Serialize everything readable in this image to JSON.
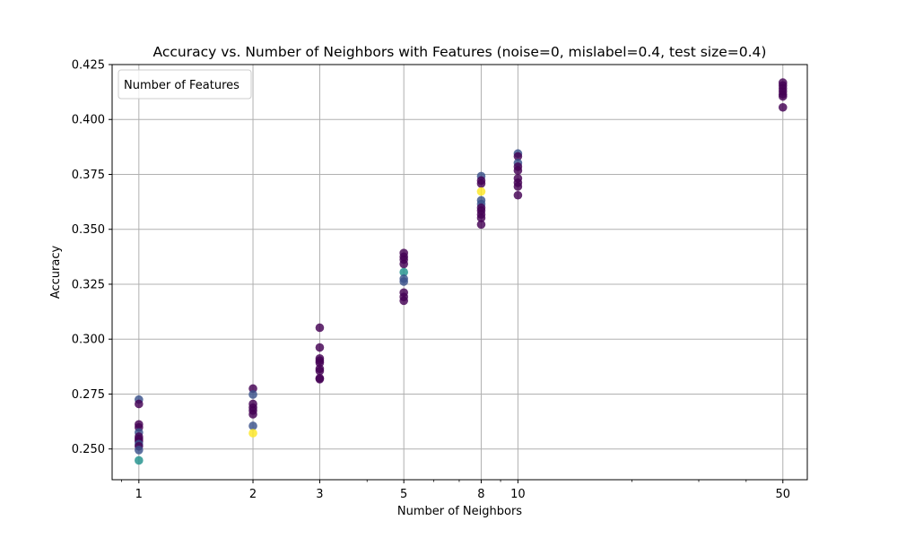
{
  "chart_data": {
    "type": "scatter",
    "title": "Accuracy vs. Number of Neighbors with Features (noise=0, mislabel=0.4, test size=0.4)",
    "xlabel": "Number of Neighbors",
    "ylabel": "Accuracy",
    "xscale": "log",
    "xlim": [
      0.85,
      58
    ],
    "ylim": [
      0.236,
      0.425
    ],
    "xticks": [
      1,
      2,
      3,
      5,
      8,
      10,
      50
    ],
    "xtick_labels": [
      "1",
      "2",
      "3",
      "5",
      "8",
      "10",
      "50"
    ],
    "yticks": [
      0.25,
      0.275,
      0.3,
      0.325,
      0.35,
      0.375,
      0.4,
      0.425
    ],
    "ytick_labels": [
      "0.250",
      "0.275",
      "0.300",
      "0.325",
      "0.350",
      "0.375",
      "0.400",
      "0.425"
    ],
    "grid": true,
    "legend": {
      "title": "Number of Features",
      "placement": "top-left",
      "entries": []
    },
    "colormap": "viridis",
    "colors": {
      "low": "#440154",
      "mid_low": "#3b528b",
      "mid": "#21918c",
      "high": "#fde725"
    },
    "points": [
      {
        "x": 1,
        "y": 0.2725,
        "c": "#3b528b"
      },
      {
        "x": 1,
        "y": 0.2705,
        "c": "#440154"
      },
      {
        "x": 1,
        "y": 0.2612,
        "c": "#440154"
      },
      {
        "x": 1,
        "y": 0.2598,
        "c": "#440154"
      },
      {
        "x": 1,
        "y": 0.2575,
        "c": "#3b528b"
      },
      {
        "x": 1,
        "y": 0.2556,
        "c": "#440154"
      },
      {
        "x": 1,
        "y": 0.2545,
        "c": "#440154"
      },
      {
        "x": 1,
        "y": 0.2535,
        "c": "#440154"
      },
      {
        "x": 1,
        "y": 0.2522,
        "c": "#3b528b"
      },
      {
        "x": 1,
        "y": 0.2512,
        "c": "#440154"
      },
      {
        "x": 1,
        "y": 0.2495,
        "c": "#3b528b"
      },
      {
        "x": 1,
        "y": 0.2448,
        "c": "#21918c"
      },
      {
        "x": 2,
        "y": 0.2775,
        "c": "#440154"
      },
      {
        "x": 2,
        "y": 0.2748,
        "c": "#3b528b"
      },
      {
        "x": 2,
        "y": 0.2705,
        "c": "#440154"
      },
      {
        "x": 2,
        "y": 0.2688,
        "c": "#440154"
      },
      {
        "x": 2,
        "y": 0.2675,
        "c": "#440154"
      },
      {
        "x": 2,
        "y": 0.2658,
        "c": "#440154"
      },
      {
        "x": 2,
        "y": 0.2605,
        "c": "#3b528b"
      },
      {
        "x": 2,
        "y": 0.2572,
        "c": "#fde725"
      },
      {
        "x": 3,
        "y": 0.3052,
        "c": "#440154"
      },
      {
        "x": 3,
        "y": 0.2962,
        "c": "#440154"
      },
      {
        "x": 3,
        "y": 0.2912,
        "c": "#440154"
      },
      {
        "x": 3,
        "y": 0.2902,
        "c": "#440154"
      },
      {
        "x": 3,
        "y": 0.2892,
        "c": "#440154"
      },
      {
        "x": 3,
        "y": 0.2865,
        "c": "#440154"
      },
      {
        "x": 3,
        "y": 0.2855,
        "c": "#440154"
      },
      {
        "x": 3,
        "y": 0.2822,
        "c": "#440154"
      },
      {
        "x": 3,
        "y": 0.2818,
        "c": "#440154"
      },
      {
        "x": 5,
        "y": 0.3392,
        "c": "#440154"
      },
      {
        "x": 5,
        "y": 0.3375,
        "c": "#440154"
      },
      {
        "x": 5,
        "y": 0.3362,
        "c": "#440154"
      },
      {
        "x": 5,
        "y": 0.3342,
        "c": "#440154"
      },
      {
        "x": 5,
        "y": 0.3305,
        "c": "#21918c"
      },
      {
        "x": 5,
        "y": 0.3275,
        "c": "#3b528b"
      },
      {
        "x": 5,
        "y": 0.3262,
        "c": "#3b528b"
      },
      {
        "x": 5,
        "y": 0.3212,
        "c": "#440154"
      },
      {
        "x": 5,
        "y": 0.3192,
        "c": "#440154"
      },
      {
        "x": 5,
        "y": 0.3175,
        "c": "#440154"
      },
      {
        "x": 8,
        "y": 0.3742,
        "c": "#3b528b"
      },
      {
        "x": 8,
        "y": 0.3722,
        "c": "#440154"
      },
      {
        "x": 8,
        "y": 0.3708,
        "c": "#440154"
      },
      {
        "x": 8,
        "y": 0.3672,
        "c": "#fde725"
      },
      {
        "x": 8,
        "y": 0.3632,
        "c": "#3b528b"
      },
      {
        "x": 8,
        "y": 0.3615,
        "c": "#3b528b"
      },
      {
        "x": 8,
        "y": 0.3598,
        "c": "#440154"
      },
      {
        "x": 8,
        "y": 0.3585,
        "c": "#440154"
      },
      {
        "x": 8,
        "y": 0.3568,
        "c": "#440154"
      },
      {
        "x": 8,
        "y": 0.3552,
        "c": "#440154"
      },
      {
        "x": 8,
        "y": 0.3522,
        "c": "#440154"
      },
      {
        "x": 10,
        "y": 0.3845,
        "c": "#3b528b"
      },
      {
        "x": 10,
        "y": 0.3832,
        "c": "#440154"
      },
      {
        "x": 10,
        "y": 0.3802,
        "c": "#3b528b"
      },
      {
        "x": 10,
        "y": 0.3785,
        "c": "#440154"
      },
      {
        "x": 10,
        "y": 0.3768,
        "c": "#440154"
      },
      {
        "x": 10,
        "y": 0.3732,
        "c": "#440154"
      },
      {
        "x": 10,
        "y": 0.3712,
        "c": "#440154"
      },
      {
        "x": 10,
        "y": 0.3695,
        "c": "#440154"
      },
      {
        "x": 10,
        "y": 0.3655,
        "c": "#440154"
      },
      {
        "x": 50,
        "y": 0.4168,
        "c": "#440154"
      },
      {
        "x": 50,
        "y": 0.4155,
        "c": "#440154"
      },
      {
        "x": 50,
        "y": 0.4142,
        "c": "#440154"
      },
      {
        "x": 50,
        "y": 0.4128,
        "c": "#440154"
      },
      {
        "x": 50,
        "y": 0.4115,
        "c": "#440154"
      },
      {
        "x": 50,
        "y": 0.4105,
        "c": "#440154"
      },
      {
        "x": 50,
        "y": 0.4055,
        "c": "#440154"
      }
    ]
  }
}
